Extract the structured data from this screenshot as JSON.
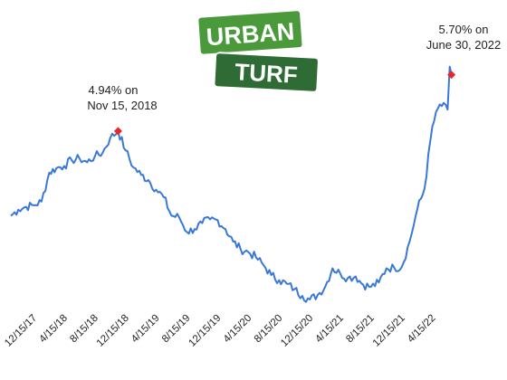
{
  "logo": {
    "line1": "URBAN",
    "line2": "TURF"
  },
  "colors": {
    "line": "#3a78d8",
    "marker": "#e8262b",
    "logo_top": "#4a9a3c",
    "logo_bottom": "#2f6b34"
  },
  "annotations": {
    "peak_2018_line1": "4.94% on",
    "peak_2018_line2": "Nov 15, 2018",
    "peak_2022_line1": "5.70% on",
    "peak_2022_line2": "June 30, 2022"
  },
  "chart_data": {
    "type": "line",
    "title": "",
    "xlabel": "",
    "ylabel": "",
    "x_ticks": [
      "12/15/17",
      "4/15/18",
      "8/15/18",
      "12/15/18",
      "4/15/19",
      "8/15/19",
      "12/15/19",
      "4/15/20",
      "8/15/20",
      "12/15/20",
      "4/15/21",
      "8/15/21",
      "12/15/21",
      "4/15/22"
    ],
    "ylim": [
      2.5,
      6.0
    ],
    "grid": false,
    "series": [
      {
        "values": [
          [
            "2017-09-15",
            3.8
          ],
          [
            "2017-10-15",
            3.88
          ],
          [
            "2017-11-15",
            3.92
          ],
          [
            "2017-12-15",
            3.94
          ],
          [
            "2018-01-15",
            3.99
          ],
          [
            "2018-02-15",
            4.38
          ],
          [
            "2018-03-15",
            4.44
          ],
          [
            "2018-04-15",
            4.47
          ],
          [
            "2018-05-15",
            4.55
          ],
          [
            "2018-06-15",
            4.57
          ],
          [
            "2018-07-15",
            4.52
          ],
          [
            "2018-08-15",
            4.6
          ],
          [
            "2018-09-15",
            4.65
          ],
          [
            "2018-10-15",
            4.85
          ],
          [
            "2018-11-15",
            4.94
          ],
          [
            "2018-12-15",
            4.68
          ],
          [
            "2019-01-15",
            4.45
          ],
          [
            "2019-02-15",
            4.35
          ],
          [
            "2019-03-15",
            4.28
          ],
          [
            "2019-04-15",
            4.15
          ],
          [
            "2019-05-15",
            4.05
          ],
          [
            "2019-06-15",
            3.8
          ],
          [
            "2019-07-15",
            3.78
          ],
          [
            "2019-08-15",
            3.58
          ],
          [
            "2019-09-15",
            3.62
          ],
          [
            "2019-10-15",
            3.7
          ],
          [
            "2019-11-15",
            3.75
          ],
          [
            "2019-12-15",
            3.74
          ],
          [
            "2020-01-15",
            3.62
          ],
          [
            "2020-02-15",
            3.45
          ],
          [
            "2020-03-15",
            3.35
          ],
          [
            "2020-04-15",
            3.31
          ],
          [
            "2020-05-15",
            3.24
          ],
          [
            "2020-06-15",
            3.13
          ],
          [
            "2020-07-15",
            3.0
          ],
          [
            "2020-08-15",
            2.93
          ],
          [
            "2020-09-15",
            2.88
          ],
          [
            "2020-10-15",
            2.81
          ],
          [
            "2020-11-15",
            2.72
          ],
          [
            "2020-12-15",
            2.67
          ],
          [
            "2021-01-15",
            2.73
          ],
          [
            "2021-02-15",
            2.85
          ],
          [
            "2021-03-15",
            3.09
          ],
          [
            "2021-04-15",
            3.02
          ],
          [
            "2021-05-15",
            2.96
          ],
          [
            "2021-06-15",
            2.98
          ],
          [
            "2021-07-15",
            2.87
          ],
          [
            "2021-08-15",
            2.84
          ],
          [
            "2021-09-15",
            2.9
          ],
          [
            "2021-10-15",
            3.09
          ],
          [
            "2021-11-15",
            3.1
          ],
          [
            "2021-12-15",
            3.11
          ],
          [
            "2022-01-15",
            3.45
          ],
          [
            "2022-02-15",
            3.89
          ],
          [
            "2022-03-15",
            4.16
          ],
          [
            "2022-04-15",
            5.0
          ],
          [
            "2022-05-15",
            5.3
          ],
          [
            "2022-06-15",
            5.23
          ],
          [
            "2022-06-23",
            5.81
          ],
          [
            "2022-06-30",
            5.7
          ]
        ]
      }
    ],
    "markers": [
      {
        "date": "2018-11-15",
        "value": 4.94
      },
      {
        "date": "2022-06-30",
        "value": 5.7
      }
    ]
  }
}
